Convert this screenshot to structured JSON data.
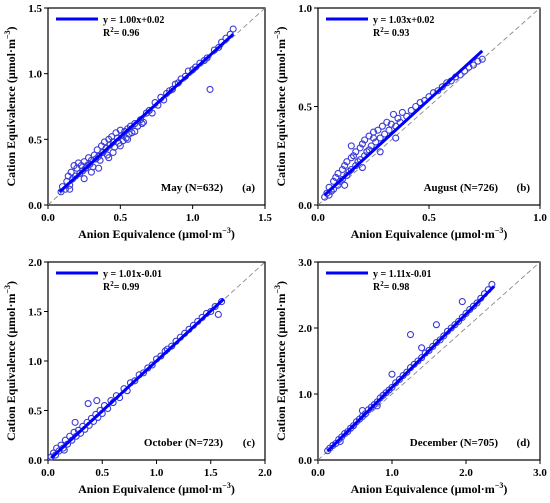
{
  "chart_data": [
    {
      "type": "scatter",
      "panel_label": "(a)",
      "annotation": "May (N=632)",
      "equation": "y = 1.00x+0.02",
      "r2_text": "R",
      "r2_sup": "2",
      "r2_value": "= 0.96",
      "xlabel_text": "Anion Equivalence (μmol·m",
      "xlabel_sup": "−3",
      "ylabel_text": "Cation Equivalence (μmol·m",
      "ylabel_sup": "−3",
      "xlim": [
        0,
        1.5
      ],
      "ylim": [
        0,
        1.5
      ],
      "xticks": [
        "0.0",
        "0.5",
        "1.0",
        "1.5"
      ],
      "yticks": [
        "0.0",
        "0.5",
        "1.0",
        "1.5"
      ],
      "fit": {
        "slope": 1.0,
        "intercept": 0.02,
        "x_range": [
          0.08,
          1.28
        ]
      },
      "colors": {
        "points": "#3a3ad6",
        "fit": "#0000ff",
        "identity": "#888888"
      },
      "points": [
        [
          0.09,
          0.1
        ],
        [
          0.1,
          0.14
        ],
        [
          0.12,
          0.12
        ],
        [
          0.13,
          0.18
        ],
        [
          0.14,
          0.22
        ],
        [
          0.15,
          0.15
        ],
        [
          0.16,
          0.25
        ],
        [
          0.17,
          0.2
        ],
        [
          0.18,
          0.3
        ],
        [
          0.19,
          0.22
        ],
        [
          0.2,
          0.28
        ],
        [
          0.21,
          0.32
        ],
        [
          0.22,
          0.24
        ],
        [
          0.23,
          0.3
        ],
        [
          0.24,
          0.26
        ],
        [
          0.25,
          0.33
        ],
        [
          0.26,
          0.28
        ],
        [
          0.27,
          0.3
        ],
        [
          0.28,
          0.36
        ],
        [
          0.29,
          0.31
        ],
        [
          0.3,
          0.34
        ],
        [
          0.31,
          0.29
        ],
        [
          0.32,
          0.38
        ],
        [
          0.33,
          0.35
        ],
        [
          0.34,
          0.42
        ],
        [
          0.35,
          0.37
        ],
        [
          0.36,
          0.34
        ],
        [
          0.37,
          0.45
        ],
        [
          0.38,
          0.4
        ],
        [
          0.39,
          0.48
        ],
        [
          0.4,
          0.43
        ],
        [
          0.41,
          0.38
        ],
        [
          0.42,
          0.5
        ],
        [
          0.43,
          0.46
        ],
        [
          0.44,
          0.52
        ],
        [
          0.45,
          0.48
        ],
        [
          0.46,
          0.44
        ],
        [
          0.47,
          0.55
        ],
        [
          0.48,
          0.51
        ],
        [
          0.49,
          0.47
        ],
        [
          0.5,
          0.57
        ],
        [
          0.51,
          0.53
        ],
        [
          0.52,
          0.49
        ],
        [
          0.53,
          0.56
        ],
        [
          0.54,
          0.51
        ],
        [
          0.55,
          0.58
        ],
        [
          0.56,
          0.54
        ],
        [
          0.57,
          0.6
        ],
        [
          0.58,
          0.55
        ],
        [
          0.6,
          0.62
        ],
        [
          0.62,
          0.6
        ],
        [
          0.64,
          0.65
        ],
        [
          0.66,
          0.63
        ],
        [
          0.68,
          0.7
        ],
        [
          0.7,
          0.72
        ],
        [
          0.72,
          0.7
        ],
        [
          0.74,
          0.78
        ],
        [
          0.76,
          0.76
        ],
        [
          0.78,
          0.82
        ],
        [
          0.8,
          0.8
        ],
        [
          0.82,
          0.85
        ],
        [
          0.84,
          0.87
        ],
        [
          0.86,
          0.88
        ],
        [
          0.88,
          0.92
        ],
        [
          0.9,
          0.93
        ],
        [
          0.92,
          0.96
        ],
        [
          0.95,
          0.98
        ],
        [
          0.97,
          1.02
        ],
        [
          1.0,
          1.03
        ],
        [
          1.02,
          1.05
        ],
        [
          1.05,
          1.08
        ],
        [
          1.08,
          1.1
        ],
        [
          1.1,
          1.12
        ],
        [
          1.12,
          0.88
        ],
        [
          1.15,
          1.18
        ],
        [
          1.18,
          1.2
        ],
        [
          1.2,
          1.24
        ],
        [
          1.23,
          1.27
        ],
        [
          1.26,
          1.3
        ],
        [
          1.28,
          1.34
        ],
        [
          0.35,
          0.28
        ],
        [
          0.45,
          0.4
        ],
        [
          0.25,
          0.2
        ],
        [
          0.55,
          0.5
        ],
        [
          0.15,
          0.12
        ],
        [
          0.65,
          0.62
        ],
        [
          0.42,
          0.36
        ],
        [
          0.3,
          0.25
        ],
        [
          0.5,
          0.45
        ],
        [
          0.6,
          0.56
        ]
      ]
    },
    {
      "type": "scatter",
      "panel_label": "(b)",
      "annotation": "August (N=726)",
      "equation": "y = 1.03x+0.02",
      "r2_text": "R",
      "r2_sup": "2",
      "r2_value": "= 0.93",
      "xlabel_text": "Anion Equivalence (μmol·m",
      "xlabel_sup": "−3",
      "ylabel_text": "Cation Equivalence (μmol·m",
      "ylabel_sup": "−3",
      "xlim": [
        0,
        1.0
      ],
      "ylim": [
        0,
        1.0
      ],
      "xticks": [
        "0.0",
        "0.5",
        "1.0"
      ],
      "yticks": [
        "0.0",
        "0.5",
        "1.0"
      ],
      "fit": {
        "slope": 1.03,
        "intercept": 0.02,
        "x_range": [
          0.03,
          0.74
        ]
      },
      "colors": {
        "points": "#3a3ad6",
        "fit": "#0000ff",
        "identity": "#888888"
      },
      "points": [
        [
          0.03,
          0.04
        ],
        [
          0.04,
          0.06
        ],
        [
          0.05,
          0.05
        ],
        [
          0.05,
          0.09
        ],
        [
          0.06,
          0.07
        ],
        [
          0.07,
          0.12
        ],
        [
          0.07,
          0.08
        ],
        [
          0.08,
          0.14
        ],
        [
          0.09,
          0.1
        ],
        [
          0.09,
          0.16
        ],
        [
          0.1,
          0.12
        ],
        [
          0.11,
          0.18
        ],
        [
          0.11,
          0.13
        ],
        [
          0.12,
          0.2
        ],
        [
          0.13,
          0.15
        ],
        [
          0.13,
          0.22
        ],
        [
          0.14,
          0.17
        ],
        [
          0.15,
          0.24
        ],
        [
          0.15,
          0.18
        ],
        [
          0.16,
          0.25
        ],
        [
          0.17,
          0.2
        ],
        [
          0.17,
          0.27
        ],
        [
          0.18,
          0.22
        ],
        [
          0.19,
          0.29
        ],
        [
          0.19,
          0.23
        ],
        [
          0.2,
          0.31
        ],
        [
          0.21,
          0.25
        ],
        [
          0.21,
          0.33
        ],
        [
          0.22,
          0.27
        ],
        [
          0.23,
          0.35
        ],
        [
          0.23,
          0.28
        ],
        [
          0.24,
          0.3
        ],
        [
          0.25,
          0.37
        ],
        [
          0.26,
          0.32
        ],
        [
          0.27,
          0.38
        ],
        [
          0.28,
          0.34
        ],
        [
          0.29,
          0.4
        ],
        [
          0.3,
          0.36
        ],
        [
          0.31,
          0.42
        ],
        [
          0.32,
          0.38
        ],
        [
          0.33,
          0.41
        ],
        [
          0.34,
          0.46
        ],
        [
          0.35,
          0.4
        ],
        [
          0.36,
          0.44
        ],
        [
          0.37,
          0.42
        ],
        [
          0.38,
          0.47
        ],
        [
          0.4,
          0.45
        ],
        [
          0.42,
          0.48
        ],
        [
          0.44,
          0.5
        ],
        [
          0.46,
          0.52
        ],
        [
          0.48,
          0.53
        ],
        [
          0.5,
          0.55
        ],
        [
          0.52,
          0.57
        ],
        [
          0.54,
          0.58
        ],
        [
          0.56,
          0.6
        ],
        [
          0.58,
          0.62
        ],
        [
          0.6,
          0.63
        ],
        [
          0.62,
          0.65
        ],
        [
          0.64,
          0.66
        ],
        [
          0.66,
          0.68
        ],
        [
          0.68,
          0.7
        ],
        [
          0.7,
          0.71
        ],
        [
          0.72,
          0.73
        ],
        [
          0.74,
          0.74
        ],
        [
          0.12,
          0.1
        ],
        [
          0.2,
          0.19
        ],
        [
          0.28,
          0.27
        ],
        [
          0.35,
          0.34
        ],
        [
          0.15,
          0.3
        ],
        [
          0.25,
          0.34
        ]
      ]
    },
    {
      "type": "scatter",
      "panel_label": "(c)",
      "annotation": "October (N=723)",
      "equation": "y = 1.01x-0.01",
      "r2_text": "R",
      "r2_sup": "2",
      "r2_value": "= 0.99",
      "xlabel_text": "Anion Equivalence (μmol·m",
      "xlabel_sup": "−3",
      "ylabel_text": "Cation Equivalence (μmol·m",
      "ylabel_sup": "−3",
      "xlim": [
        0,
        2.0
      ],
      "ylim": [
        0,
        2.0
      ],
      "xticks": [
        "0.0",
        "0.5",
        "1.0",
        "1.5",
        "2.0"
      ],
      "yticks": [
        "0.0",
        "0.5",
        "1.0",
        "1.5",
        "2.0"
      ],
      "fit": {
        "slope": 1.01,
        "intercept": -0.01,
        "x_range": [
          0.03,
          1.62
        ]
      },
      "colors": {
        "points": "#3a3ad6",
        "fit": "#0000ff",
        "identity": "#888888"
      },
      "points": [
        [
          0.03,
          0.03
        ],
        [
          0.05,
          0.07
        ],
        [
          0.07,
          0.05
        ],
        [
          0.08,
          0.12
        ],
        [
          0.1,
          0.09
        ],
        [
          0.12,
          0.15
        ],
        [
          0.14,
          0.12
        ],
        [
          0.16,
          0.2
        ],
        [
          0.18,
          0.16
        ],
        [
          0.2,
          0.24
        ],
        [
          0.22,
          0.2
        ],
        [
          0.24,
          0.28
        ],
        [
          0.26,
          0.24
        ],
        [
          0.28,
          0.3
        ],
        [
          0.3,
          0.27
        ],
        [
          0.32,
          0.34
        ],
        [
          0.34,
          0.31
        ],
        [
          0.36,
          0.38
        ],
        [
          0.37,
          0.57
        ],
        [
          0.38,
          0.35
        ],
        [
          0.4,
          0.42
        ],
        [
          0.42,
          0.39
        ],
        [
          0.44,
          0.46
        ],
        [
          0.46,
          0.43
        ],
        [
          0.48,
          0.5
        ],
        [
          0.5,
          0.47
        ],
        [
          0.52,
          0.55
        ],
        [
          0.55,
          0.52
        ],
        [
          0.58,
          0.6
        ],
        [
          0.6,
          0.58
        ],
        [
          0.63,
          0.65
        ],
        [
          0.66,
          0.63
        ],
        [
          0.7,
          0.72
        ],
        [
          0.73,
          0.7
        ],
        [
          0.76,
          0.78
        ],
        [
          0.8,
          0.8
        ],
        [
          0.84,
          0.86
        ],
        [
          0.88,
          0.88
        ],
        [
          0.92,
          0.93
        ],
        [
          0.96,
          0.96
        ],
        [
          1.0,
          1.02
        ],
        [
          1.04,
          1.05
        ],
        [
          1.08,
          1.1
        ],
        [
          1.1,
          1.12
        ],
        [
          1.14,
          1.15
        ],
        [
          1.18,
          1.2
        ],
        [
          1.22,
          1.24
        ],
        [
          1.26,
          1.28
        ],
        [
          1.3,
          1.32
        ],
        [
          1.34,
          1.36
        ],
        [
          1.38,
          1.4
        ],
        [
          1.42,
          1.44
        ],
        [
          1.46,
          1.48
        ],
        [
          1.5,
          1.5
        ],
        [
          1.54,
          1.55
        ],
        [
          1.57,
          1.47
        ],
        [
          1.6,
          1.6
        ],
        [
          0.25,
          0.38
        ],
        [
          0.45,
          0.6
        ],
        [
          0.15,
          0.1
        ]
      ]
    },
    {
      "type": "scatter",
      "panel_label": "(d)",
      "annotation": "December (N=705)",
      "equation": "y = 1.11x-0.01",
      "r2_text": "R",
      "r2_sup": "2",
      "r2_value": "= 0.98",
      "xlabel_text": "Anion Equivalence (μmol·m",
      "xlabel_sup": "−3",
      "ylabel_text": "Cation Equivalence (μmol·m",
      "ylabel_sup": "−3",
      "xlim": [
        0,
        3.0
      ],
      "ylim": [
        0,
        3.0
      ],
      "xticks": [
        "0.0",
        "1.0",
        "2.0",
        "3.0"
      ],
      "yticks": [
        "0.0",
        "1.0",
        "2.0",
        "3.0"
      ],
      "fit": {
        "slope": 1.11,
        "intercept": -0.01,
        "x_range": [
          0.13,
          2.38
        ]
      },
      "colors": {
        "points": "#3a3ad6",
        "fit": "#0000ff",
        "identity": "#888888"
      },
      "points": [
        [
          0.13,
          0.14
        ],
        [
          0.16,
          0.18
        ],
        [
          0.2,
          0.22
        ],
        [
          0.24,
          0.25
        ],
        [
          0.28,
          0.31
        ],
        [
          0.32,
          0.35
        ],
        [
          0.36,
          0.4
        ],
        [
          0.4,
          0.43
        ],
        [
          0.44,
          0.48
        ],
        [
          0.48,
          0.52
        ],
        [
          0.52,
          0.58
        ],
        [
          0.56,
          0.62
        ],
        [
          0.6,
          0.66
        ],
        [
          0.64,
          0.7
        ],
        [
          0.68,
          0.76
        ],
        [
          0.72,
          0.8
        ],
        [
          0.76,
          0.84
        ],
        [
          0.8,
          0.88
        ],
        [
          0.84,
          0.94
        ],
        [
          0.88,
          0.98
        ],
        [
          0.92,
          1.02
        ],
        [
          0.96,
          1.06
        ],
        [
          1.0,
          1.1
        ],
        [
          1.05,
          1.17
        ],
        [
          1.1,
          1.22
        ],
        [
          1.15,
          1.28
        ],
        [
          1.2,
          1.33
        ],
        [
          1.25,
          1.4
        ],
        [
          1.3,
          1.45
        ],
        [
          1.35,
          1.5
        ],
        [
          1.4,
          1.55
        ],
        [
          1.45,
          1.62
        ],
        [
          1.5,
          1.66
        ],
        [
          1.55,
          1.72
        ],
        [
          1.6,
          1.78
        ],
        [
          1.65,
          1.82
        ],
        [
          1.7,
          1.88
        ],
        [
          1.75,
          1.95
        ],
        [
          1.8,
          2.0
        ],
        [
          1.85,
          2.05
        ],
        [
          1.9,
          2.1
        ],
        [
          1.95,
          2.16
        ],
        [
          2.0,
          2.22
        ],
        [
          2.05,
          2.28
        ],
        [
          2.1,
          2.33
        ],
        [
          2.15,
          2.38
        ],
        [
          2.2,
          2.45
        ],
        [
          2.25,
          2.52
        ],
        [
          2.3,
          2.58
        ],
        [
          2.35,
          2.66
        ],
        [
          1.25,
          1.9
        ],
        [
          1.6,
          2.05
        ],
        [
          1.95,
          2.4
        ],
        [
          0.6,
          0.75
        ],
        [
          1.0,
          1.3
        ],
        [
          1.4,
          1.7
        ],
        [
          0.3,
          0.28
        ],
        [
          0.8,
          0.82
        ]
      ]
    }
  ]
}
